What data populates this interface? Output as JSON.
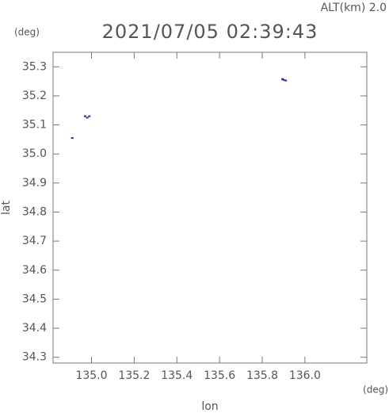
{
  "chart_data": {
    "type": "scatter",
    "title": "2021/07/05 02:39:43",
    "altitude_label": "ALT(km) 2.0",
    "y_unit": "(deg)",
    "x_unit": "(deg)",
    "x_label": "lon",
    "y_label": "lat",
    "xlim": [
      134.82,
      136.29
    ],
    "ylim": [
      34.28,
      35.35
    ],
    "xticks": [
      {
        "value": 135.0,
        "label": "135.0"
      },
      {
        "value": 135.2,
        "label": "135.2"
      },
      {
        "value": 135.4,
        "label": "135.4"
      },
      {
        "value": 135.6,
        "label": "135.6"
      },
      {
        "value": 135.8,
        "label": "135.8"
      },
      {
        "value": 136.0,
        "label": "136.0"
      }
    ],
    "yticks": [
      {
        "value": 34.3,
        "label": "34.3"
      },
      {
        "value": 34.4,
        "label": "34.4"
      },
      {
        "value": 34.5,
        "label": "34.5"
      },
      {
        "value": 34.6,
        "label": "34.6"
      },
      {
        "value": 34.7,
        "label": "34.7"
      },
      {
        "value": 34.8,
        "label": "34.8"
      },
      {
        "value": 34.9,
        "label": "34.9"
      },
      {
        "value": 35.0,
        "label": "35.0"
      },
      {
        "value": 35.1,
        "label": "35.1"
      },
      {
        "value": 35.2,
        "label": "35.2"
      },
      {
        "value": 35.3,
        "label": "35.3"
      }
    ],
    "color": "#1a2a9a",
    "x": [
      134.91,
      134.97,
      134.98,
      134.99,
      135.895,
      135.9,
      135.91
    ],
    "values": [
      35.055,
      35.13,
      35.125,
      35.13,
      35.258,
      35.255,
      35.253
    ]
  }
}
